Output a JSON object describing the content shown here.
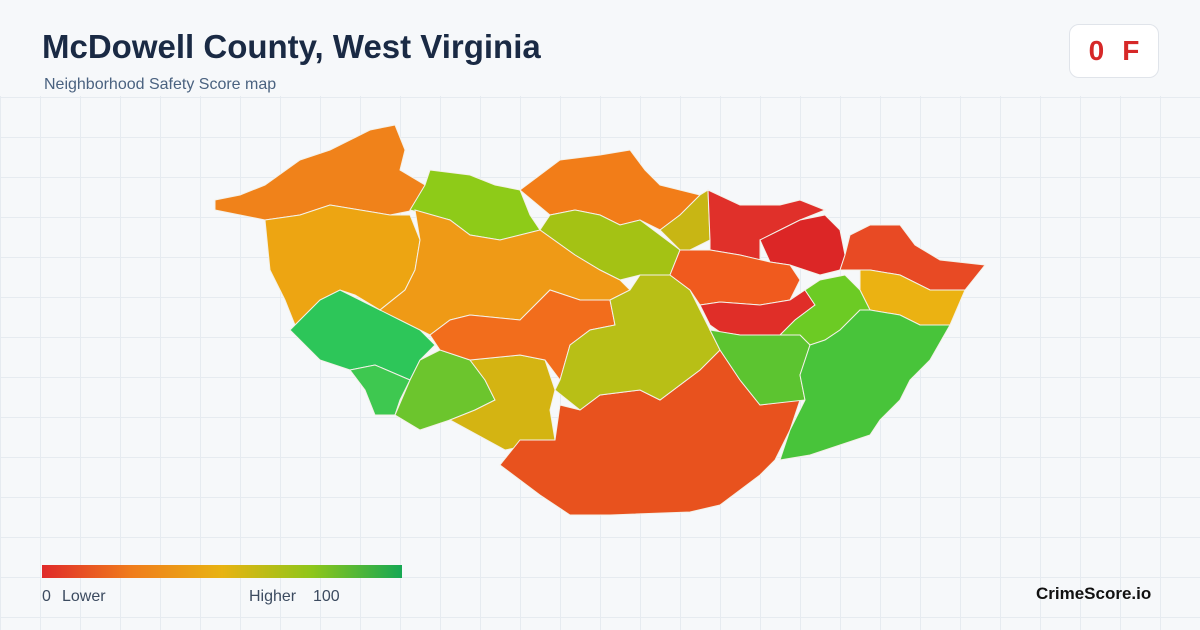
{
  "header": {
    "title": "McDowell County, West Virginia",
    "subtitle": "Neighborhood Safety Score map"
  },
  "score": {
    "value": "0",
    "grade": "F"
  },
  "legend": {
    "min": "0",
    "low_label": "Lower",
    "high_label": "Higher",
    "max": "100"
  },
  "brand": "CrimeScore.io"
}
